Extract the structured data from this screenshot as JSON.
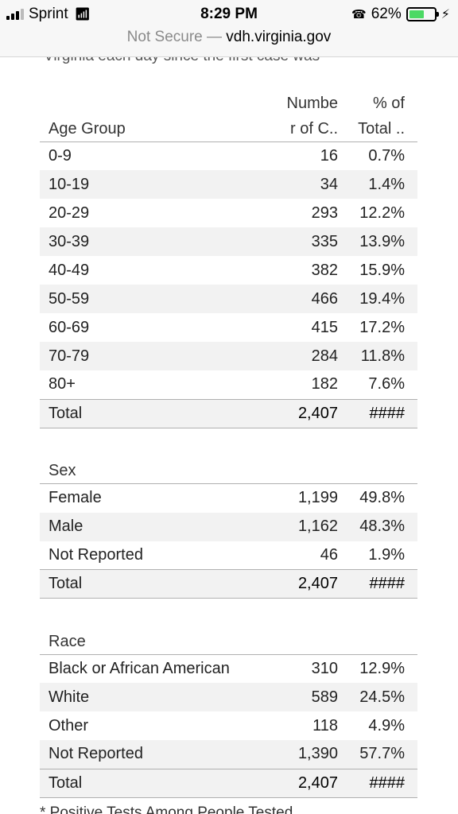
{
  "status_bar": {
    "carrier": "Sprint",
    "time": "8:29 PM",
    "battery_percent": "62%",
    "battery_level": 0.62
  },
  "url_bar": {
    "security": "Not Secure",
    "separator": "—",
    "domain": "vdh.virginia.gov"
  },
  "intro_text": "Virginia each day since the first case was",
  "age_table": {
    "header": {
      "group": "Age Group",
      "count_line1": "Numbe",
      "count_line2": "r of C..",
      "pct_line1": "% of",
      "pct_line2": "Total .."
    },
    "rows": [
      {
        "label": "0-9",
        "count": "16",
        "pct": "0.7%"
      },
      {
        "label": "10-19",
        "count": "34",
        "pct": "1.4%"
      },
      {
        "label": "20-29",
        "count": "293",
        "pct": "12.2%"
      },
      {
        "label": "30-39",
        "count": "335",
        "pct": "13.9%"
      },
      {
        "label": "40-49",
        "count": "382",
        "pct": "15.9%"
      },
      {
        "label": "50-59",
        "count": "466",
        "pct": "19.4%"
      },
      {
        "label": "60-69",
        "count": "415",
        "pct": "17.2%"
      },
      {
        "label": "70-79",
        "count": "284",
        "pct": "11.8%"
      },
      {
        "label": "80+",
        "count": "182",
        "pct": "7.6%"
      }
    ],
    "total": {
      "label": "Total",
      "count": "2,407",
      "pct": "####"
    }
  },
  "sex_table": {
    "header": {
      "group": "Sex"
    },
    "rows": [
      {
        "label": "Female",
        "count": "1,199",
        "pct": "49.8%"
      },
      {
        "label": "Male",
        "count": "1,162",
        "pct": "48.3%"
      },
      {
        "label": "Not Reported",
        "count": "46",
        "pct": "1.9%"
      }
    ],
    "total": {
      "label": "Total",
      "count": "2,407",
      "pct": "####"
    }
  },
  "race_table": {
    "header": {
      "group": "Race"
    },
    "rows": [
      {
        "label": "Black or African American",
        "count": "310",
        "pct": "12.9%"
      },
      {
        "label": "White",
        "count": "589",
        "pct": "24.5%"
      },
      {
        "label": "Other",
        "count": "118",
        "pct": "4.9%"
      },
      {
        "label": "Not Reported",
        "count": "1,390",
        "pct": "57.7%"
      }
    ],
    "total": {
      "label": "Total",
      "count": "2,407",
      "pct": "####"
    }
  },
  "footnote": "* Positive Tests Among People Tested"
}
